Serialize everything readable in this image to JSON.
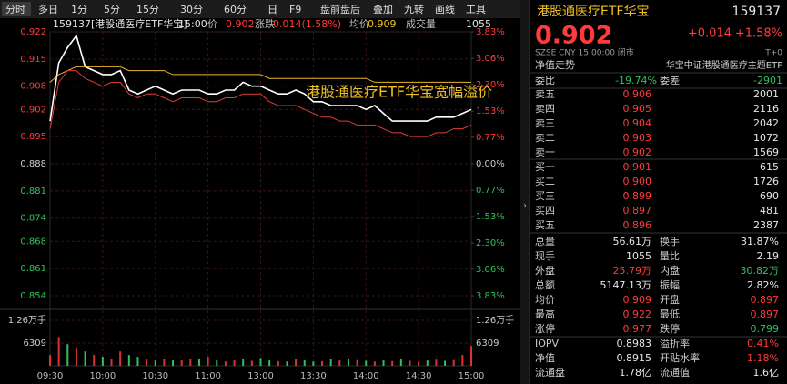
{
  "toolbar": {
    "left": [
      "分时",
      "多日",
      "1分",
      "5分",
      "15分",
      "30分",
      "60分",
      "日"
    ],
    "right": [
      "F9",
      "盘前盘后",
      "叠加",
      "九转",
      "画线",
      "工具"
    ]
  },
  "chart_header": {
    "time": "15:00",
    "items": [
      {
        "label": "价",
        "value": "0.902",
        "color": "#ff3b3b"
      },
      {
        "label": "涨跌",
        "value": "0.014(1.58%)",
        "color": "#ff3b3b"
      },
      {
        "label": "均价",
        "value": "0.909",
        "color": "#f0c020"
      },
      {
        "label": "成交量",
        "value": "1055",
        "color": "#e6e6e6"
      }
    ]
  },
  "chart_data": {
    "type": "line",
    "title": "159137[港股通医疗ETF华宝]",
    "annotation": "港股通医疗ETF华宝宽幅溢价",
    "categories": [
      "09:30",
      null,
      null,
      null,
      null,
      null,
      "10:00",
      null,
      null,
      null,
      null,
      null,
      "10:30",
      null,
      null,
      null,
      null,
      null,
      "11:00",
      null,
      null,
      null,
      null,
      null,
      "13:00",
      null,
      null,
      null,
      null,
      null,
      "13:30",
      null,
      null,
      null,
      null,
      null,
      "14:00",
      null,
      null,
      null,
      null,
      null,
      "14:30",
      null,
      null,
      null,
      null,
      null,
      "15:00"
    ],
    "series": [
      {
        "color": "#ffffff",
        "values": [
          0.899,
          0.914,
          0.918,
          0.921,
          0.913,
          0.912,
          0.911,
          0.911,
          0.912,
          0.907,
          0.906,
          0.907,
          0.908,
          0.907,
          0.906,
          0.907,
          0.907,
          0.907,
          0.906,
          0.906,
          0.907,
          0.907,
          0.909,
          0.908,
          0.908,
          0.907,
          0.906,
          0.906,
          0.907,
          0.906,
          0.904,
          0.904,
          0.903,
          0.903,
          0.903,
          0.903,
          0.902,
          0.903,
          0.901,
          0.899,
          0.899,
          0.899,
          0.899,
          0.899,
          0.9,
          0.9,
          0.9,
          0.901,
          0.902
        ]
      },
      {
        "color": "#e8b830",
        "values": [
          0.909,
          0.911,
          0.912,
          0.913,
          0.913,
          0.913,
          0.913,
          0.913,
          0.913,
          0.912,
          0.912,
          0.912,
          0.912,
          0.912,
          0.911,
          0.911,
          0.911,
          0.911,
          0.911,
          0.911,
          0.911,
          0.911,
          0.911,
          0.911,
          0.911,
          0.91,
          0.91,
          0.91,
          0.91,
          0.91,
          0.91,
          0.91,
          0.91,
          0.91,
          0.91,
          0.91,
          0.91,
          0.909,
          0.909,
          0.909,
          0.909,
          0.909,
          0.909,
          0.909,
          0.909,
          0.909,
          0.909,
          0.909,
          0.909
        ]
      },
      {
        "color": "#e03a3a",
        "values": [
          0.897,
          0.909,
          0.912,
          0.912,
          0.91,
          0.909,
          0.908,
          0.909,
          0.909,
          0.906,
          0.905,
          0.906,
          0.906,
          0.905,
          0.904,
          0.905,
          0.905,
          0.905,
          0.904,
          0.904,
          0.905,
          0.905,
          0.906,
          0.906,
          0.906,
          0.904,
          0.903,
          0.903,
          0.903,
          0.902,
          0.901,
          0.9,
          0.9,
          0.899,
          0.899,
          0.898,
          0.898,
          0.898,
          0.897,
          0.896,
          0.896,
          0.895,
          0.895,
          0.895,
          0.896,
          0.896,
          0.897,
          0.897,
          0.898
        ]
      }
    ],
    "ylim": [
      0.854,
      0.922
    ],
    "yticks": [
      0.922,
      0.915,
      0.908,
      0.902,
      0.895,
      0.888,
      0.881,
      0.874,
      0.868,
      0.861,
      0.854
    ],
    "y2lim": [
      -3.83,
      3.83
    ],
    "y2ticks": [
      {
        "value": 3.83,
        "label": "3.83%"
      },
      {
        "value": 3.06,
        "label": "3.06%"
      },
      {
        "value": 2.3,
        "label": "2.30%"
      },
      {
        "value": 1.53,
        "label": "1.53%"
      },
      {
        "value": 0.77,
        "label": "0.77%"
      },
      {
        "value": 0,
        "label": "0.00%"
      },
      {
        "value": -0.77,
        "label": "0.77%"
      },
      {
        "value": -1.53,
        "label": "1.53%"
      },
      {
        "value": -2.3,
        "label": "2.30%"
      },
      {
        "value": -3.06,
        "label": "3.06%"
      },
      {
        "value": -3.83,
        "label": "3.83%"
      }
    ],
    "grid": true,
    "volume": {
      "values": [
        3000,
        8000,
        6000,
        5000,
        4000,
        3000,
        2500,
        2000,
        4000,
        3000,
        2500,
        2000,
        1500,
        2000,
        1500,
        1500,
        2000,
        1800,
        2500,
        1500,
        1200,
        1500,
        1800,
        1400,
        2200,
        1500,
        1300,
        1200,
        2000,
        1500,
        1200,
        1300,
        1800,
        1500,
        2000,
        1600,
        1400,
        1200,
        1500,
        1300,
        1800,
        1400,
        1200,
        1500,
        1700,
        1400,
        1600,
        3000,
        5500
      ],
      "colors": [
        "#e03030",
        "#e03030",
        "#2ec25b",
        "#e03030",
        "#2ec25b",
        "#e03030",
        "#2ec25b",
        "#e03030",
        "#e03030",
        "#2ec25b",
        "#2ec25b",
        "#e03030",
        "#2ec25b",
        "#e03030",
        "#2ec25b",
        "#e03030",
        "#e03030",
        "#2ec25b",
        "#e03030",
        "#2ec25b",
        "#e03030",
        "#e03030",
        "#2ec25b",
        "#e03030",
        "#2ec25b",
        "#2ec25b",
        "#e03030",
        "#2ec25b",
        "#e03030",
        "#2ec25b",
        "#2ec25b",
        "#e03030",
        "#2ec25b",
        "#e03030",
        "#2ec25b",
        "#e03030",
        "#2ec25b",
        "#e03030",
        "#2ec25b",
        "#e03030",
        "#2ec25b",
        "#e03030",
        "#e03030",
        "#2ec25b",
        "#e03030",
        "#2ec25b",
        "#e03030",
        "#e03030",
        "#e03030"
      ],
      "ylim": [
        0,
        12618
      ],
      "yticks": [
        {
          "value": 12618,
          "label": "1.26万手"
        },
        6309
      ]
    }
  },
  "quote": {
    "name": "港股通医疗ETF华宝",
    "code": "159137",
    "price": "0.902",
    "change": "+0.014",
    "change_pct": "+1.58%",
    "meta": "SZSE  CNY  15:00:00  闭市",
    "nav_link": "净值走势",
    "fund_name": "华宝中证港股通医疗主题ETF",
    "t0": "T+0",
    "ratio": [
      {
        "label": "委比",
        "value": "-19.74%"
      },
      {
        "label": "委差",
        "value": "-2901"
      }
    ],
    "asks": [
      [
        "卖五",
        "0.906",
        "2001"
      ],
      [
        "卖四",
        "0.905",
        "2116"
      ],
      [
        "卖三",
        "0.904",
        "2042"
      ],
      [
        "卖二",
        "0.903",
        "1072"
      ],
      [
        "卖一",
        "0.902",
        "1569"
      ]
    ],
    "bids": [
      [
        "买一",
        "0.901",
        "615"
      ],
      [
        "买二",
        "0.900",
        "1726"
      ],
      [
        "买三",
        "0.899",
        "690"
      ],
      [
        "买四",
        "0.897",
        "481"
      ],
      [
        "买五",
        "0.896",
        "2387"
      ]
    ],
    "stats": [
      [
        {
          "label": "总量",
          "value": "56.61万",
          "color": "#e6e6e6"
        },
        {
          "label": "换手",
          "value": "31.87%",
          "color": "#e6e6e6"
        }
      ],
      [
        {
          "label": "现手",
          "value": "1055",
          "color": "#e6e6e6"
        },
        {
          "label": "量比",
          "value": "2.19",
          "color": "#e6e6e6"
        }
      ],
      [
        {
          "label": "外盘",
          "value": "25.79万",
          "color": "#ff3b3b"
        },
        {
          "label": "内盘",
          "value": "30.82万",
          "color": "#2ec25b"
        }
      ],
      [
        {
          "label": "总额",
          "value": "5147.13万",
          "color": "#e6e6e6"
        },
        {
          "label": "振幅",
          "value": "2.82%",
          "color": "#e6e6e6"
        }
      ],
      [
        {
          "label": "均价",
          "value": "0.909",
          "color": "#ff3b3b"
        },
        {
          "label": "开盘",
          "value": "0.897",
          "color": "#ff3b3b"
        }
      ],
      [
        {
          "label": "最高",
          "value": "0.922",
          "color": "#ff3b3b"
        },
        {
          "label": "最低",
          "value": "0.897",
          "color": "#ff3b3b"
        }
      ],
      [
        {
          "label": "涨停",
          "value": "0.977",
          "color": "#ff3b3b"
        },
        {
          "label": "跌停",
          "value": "0.799",
          "color": "#2ec25b"
        }
      ],
      [
        {
          "label": "IOPV",
          "value": "0.8983",
          "color": "#e6e6e6"
        },
        {
          "label": "溢折率",
          "value": "0.41%",
          "color": "#ff3b3b"
        }
      ],
      [
        {
          "label": "净值",
          "value": "0.8915",
          "color": "#e6e6e6"
        },
        {
          "label": "开贴水率",
          "value": "1.18%",
          "color": "#ff3b3b"
        }
      ],
      [
        {
          "label": "流通盘",
          "value": "1.78亿",
          "color": "#e6e6e6"
        },
        {
          "label": "流通值",
          "value": "1.6亿",
          "color": "#e6e6e6"
        }
      ]
    ]
  }
}
